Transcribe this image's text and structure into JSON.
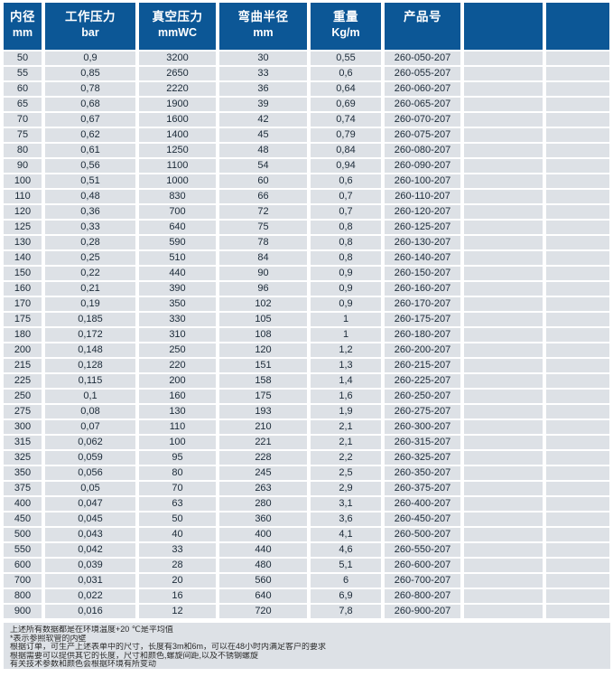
{
  "table": {
    "headers": [
      {
        "label": "内径",
        "unit": "mm"
      },
      {
        "label": "工作压力",
        "unit": "bar"
      },
      {
        "label": "真空压力",
        "unit": "mmWC"
      },
      {
        "label": "弯曲半径",
        "unit": "mm"
      },
      {
        "label": "重量",
        "unit": "Kg/m"
      },
      {
        "label": "产品号",
        "unit": ""
      },
      {
        "label": "",
        "unit": ""
      },
      {
        "label": "",
        "unit": ""
      }
    ],
    "rows": [
      [
        "50",
        "0,9",
        "3200",
        "30",
        "0,55",
        "260-050-207"
      ],
      [
        "55",
        "0,85",
        "2650",
        "33",
        "0,6",
        "260-055-207"
      ],
      [
        "60",
        "0,78",
        "2220",
        "36",
        "0,64",
        "260-060-207"
      ],
      [
        "65",
        "0,68",
        "1900",
        "39",
        "0,69",
        "260-065-207"
      ],
      [
        "70",
        "0,67",
        "1600",
        "42",
        "0,74",
        "260-070-207"
      ],
      [
        "75",
        "0,62",
        "1400",
        "45",
        "0,79",
        "260-075-207"
      ],
      [
        "80",
        "0,61",
        "1250",
        "48",
        "0,84",
        "260-080-207"
      ],
      [
        "90",
        "0,56",
        "1100",
        "54",
        "0,94",
        "260-090-207"
      ],
      [
        "100",
        "0,51",
        "1000",
        "60",
        "0,6",
        "260-100-207"
      ],
      [
        "110",
        "0,48",
        "830",
        "66",
        "0,7",
        "260-110-207"
      ],
      [
        "120",
        "0,36",
        "700",
        "72",
        "0,7",
        "260-120-207"
      ],
      [
        "125",
        "0,33",
        "640",
        "75",
        "0,8",
        "260-125-207"
      ],
      [
        "130",
        "0,28",
        "590",
        "78",
        "0,8",
        "260-130-207"
      ],
      [
        "140",
        "0,25",
        "510",
        "84",
        "0,8",
        "260-140-207"
      ],
      [
        "150",
        "0,22",
        "440",
        "90",
        "0,9",
        "260-150-207"
      ],
      [
        "160",
        "0,21",
        "390",
        "96",
        "0,9",
        "260-160-207"
      ],
      [
        "170",
        "0,19",
        "350",
        "102",
        "0,9",
        "260-170-207"
      ],
      [
        "175",
        "0,185",
        "330",
        "105",
        "1",
        "260-175-207"
      ],
      [
        "180",
        "0,172",
        "310",
        "108",
        "1",
        "260-180-207"
      ],
      [
        "200",
        "0,148",
        "250",
        "120",
        "1,2",
        "260-200-207"
      ],
      [
        "215",
        "0,128",
        "220",
        "151",
        "1,3",
        "260-215-207"
      ],
      [
        "225",
        "0,115",
        "200",
        "158",
        "1,4",
        "260-225-207"
      ],
      [
        "250",
        "0,1",
        "160",
        "175",
        "1,6",
        "260-250-207"
      ],
      [
        "275",
        "0,08",
        "130",
        "193",
        "1,9",
        "260-275-207"
      ],
      [
        "300",
        "0,07",
        "110",
        "210",
        "2,1",
        "260-300-207"
      ],
      [
        "315",
        "0,062",
        "100",
        "221",
        "2,1",
        "260-315-207"
      ],
      [
        "325",
        "0,059",
        "95",
        "228",
        "2,2",
        "260-325-207"
      ],
      [
        "350",
        "0,056",
        "80",
        "245",
        "2,5",
        "260-350-207"
      ],
      [
        "375",
        "0,05",
        "70",
        "263",
        "2,9",
        "260-375-207"
      ],
      [
        "400",
        "0,047",
        "63",
        "280",
        "3,1",
        "260-400-207"
      ],
      [
        "450",
        "0,045",
        "50",
        "360",
        "3,6",
        "260-450-207"
      ],
      [
        "500",
        "0,043",
        "40",
        "400",
        "4,1",
        "260-500-207"
      ],
      [
        "550",
        "0,042",
        "33",
        "440",
        "4,6",
        "260-550-207"
      ],
      [
        "600",
        "0,039",
        "28",
        "480",
        "5,1",
        "260-600-207"
      ],
      [
        "700",
        "0,031",
        "20",
        "560",
        "6",
        "260-700-207"
      ],
      [
        "800",
        "0,022",
        "16",
        "640",
        "6,9",
        "260-800-207"
      ],
      [
        "900",
        "0,016",
        "12",
        "720",
        "7,8",
        "260-900-207"
      ]
    ]
  },
  "footnotes": [
    "上述所有数据都是在环境温度+20 ℃是平均值",
    "*表示参照软管的内壁",
    "根据订单，可生产上述表单中的尺寸，长度有3m和6m，可以在48小时内满足客户的要求",
    "根据需要可以提供其它的长度，尺寸和颜色,螺旋间距,以及不锈钢螺旋",
    "有关技术参数和颜色会根据环境有所变动"
  ],
  "colors": {
    "header_bg": "#0c5796",
    "header_text": "#ffffff",
    "row_bg": "#dde1e6",
    "footer_bg": "#dde1e6",
    "data_text": "#1b2a38"
  }
}
